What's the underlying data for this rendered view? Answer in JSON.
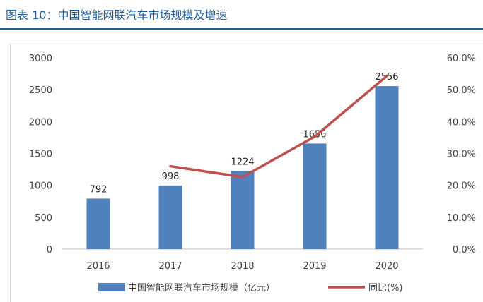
{
  "header": {
    "title": "图表 10：中国智能网联汽车市场规模及增速"
  },
  "chart_data": {
    "type": "bar",
    "categories": [
      "2016",
      "2017",
      "2018",
      "2019",
      "2020"
    ],
    "series": [
      {
        "name": "中国智能网联汽车市场规模（亿元）",
        "type": "bar",
        "axis": "left",
        "color": "#4f81bd",
        "values": [
          792,
          998,
          1224,
          1656,
          2556
        ],
        "data_labels": [
          "792",
          "998",
          "1224",
          "1656",
          "2556"
        ]
      },
      {
        "name": "同比(%)",
        "type": "line",
        "axis": "right",
        "color": "#c0504d",
        "values": [
          null,
          26.0,
          22.6,
          35.3,
          54.3
        ]
      }
    ],
    "y_left": {
      "ylim": [
        0,
        3000
      ],
      "ticks": [
        "0",
        "500",
        "1000",
        "1500",
        "2000",
        "2500",
        "3000"
      ]
    },
    "y_right": {
      "ylim": [
        0,
        60
      ],
      "ticks": [
        "0.0%",
        "10.0%",
        "20.0%",
        "30.0%",
        "40.0%",
        "50.0%",
        "60.0%"
      ]
    },
    "legend_position": "bottom",
    "grid": false
  }
}
